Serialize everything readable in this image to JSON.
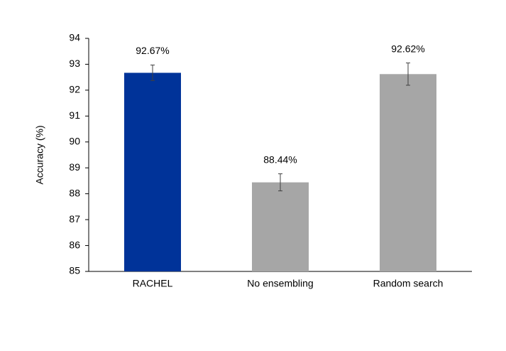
{
  "chart_data": {
    "type": "bar",
    "y_label": "Accuracy (%)",
    "categories": [
      "RACHEL",
      "No ensembling",
      "Random search"
    ],
    "values": [
      92.67,
      88.44,
      92.62
    ],
    "value_labels": [
      "92.67%",
      "88.44%",
      "92.62%"
    ],
    "errors": [
      0.3,
      0.33,
      0.43
    ],
    "colors": [
      "#003399",
      "#a6a6a6",
      "#a6a6a6"
    ],
    "ylim": [
      85,
      94
    ],
    "yticks": [
      85,
      86,
      87,
      88,
      89,
      90,
      91,
      92,
      93,
      94
    ],
    "grid": false
  }
}
